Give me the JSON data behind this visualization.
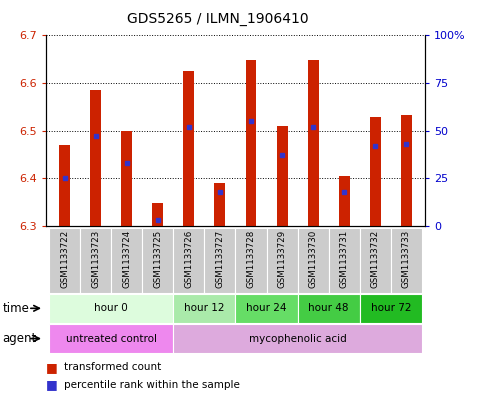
{
  "title": "GDS5265 / ILMN_1906410",
  "samples": [
    "GSM1133722",
    "GSM1133723",
    "GSM1133724",
    "GSM1133725",
    "GSM1133726",
    "GSM1133727",
    "GSM1133728",
    "GSM1133729",
    "GSM1133730",
    "GSM1133731",
    "GSM1133732",
    "GSM1133733"
  ],
  "transformed_count": [
    6.47,
    6.585,
    6.5,
    6.348,
    6.625,
    6.39,
    6.648,
    6.51,
    6.648,
    6.405,
    6.528,
    6.532
  ],
  "percentile_rank": [
    25,
    47,
    33,
    3,
    52,
    18,
    55,
    37,
    52,
    18,
    42,
    43
  ],
  "ylim": [
    6.3,
    6.7
  ],
  "yticks": [
    6.3,
    6.4,
    6.5,
    6.6,
    6.7
  ],
  "y2ticks": [
    0,
    25,
    50,
    75,
    100
  ],
  "y2labels": [
    "0",
    "25",
    "50",
    "75",
    "100%"
  ],
  "bar_color": "#cc2200",
  "blue_color": "#3333cc",
  "plot_bg": "#ffffff",
  "gsm_bg": "#cccccc",
  "time_groups": [
    {
      "label": "hour 0",
      "start": 0,
      "end": 4,
      "color": "#ddfcdd"
    },
    {
      "label": "hour 12",
      "start": 4,
      "end": 6,
      "color": "#aaeaaa"
    },
    {
      "label": "hour 24",
      "start": 6,
      "end": 8,
      "color": "#66dd66"
    },
    {
      "label": "hour 48",
      "start": 8,
      "end": 10,
      "color": "#44cc44"
    },
    {
      "label": "hour 72",
      "start": 10,
      "end": 12,
      "color": "#22bb22"
    }
  ],
  "agent_groups": [
    {
      "label": "untreated control",
      "start": 0,
      "end": 4,
      "color": "#ee88ee"
    },
    {
      "label": "mycophenolic acid",
      "start": 4,
      "end": 12,
      "color": "#ddaadd"
    }
  ],
  "ylabel_color": "#cc2200",
  "y2label_color": "#0000cc",
  "bar_width": 0.35
}
